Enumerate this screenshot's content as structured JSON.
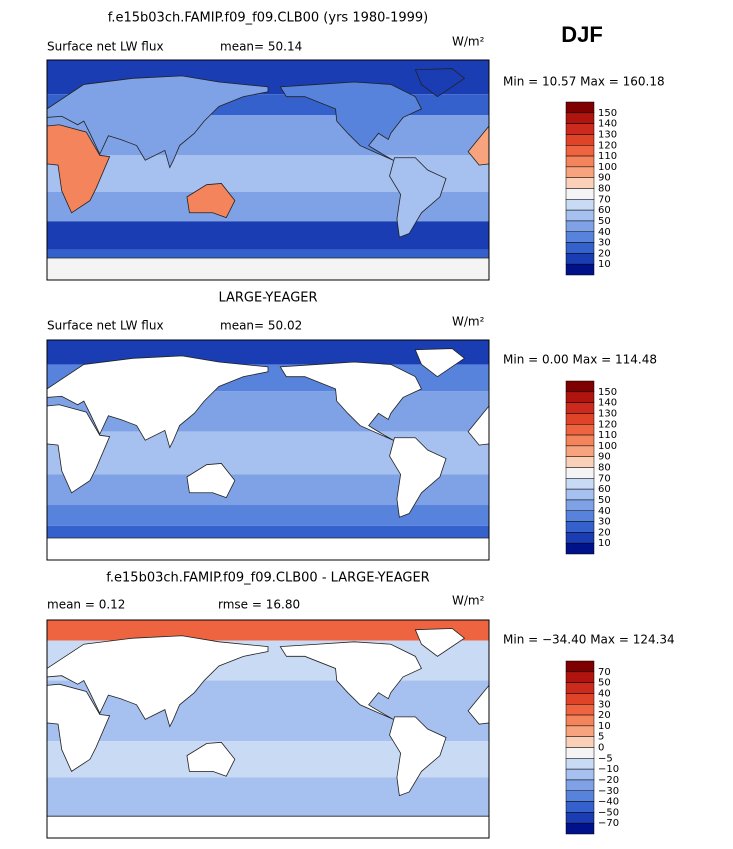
{
  "header": {
    "title": "f.e15b03ch.FAMIP.f09_f09.CLB00 (yrs 1980-1999)",
    "season": "DJF"
  },
  "panels": [
    {
      "subtitle": "Surface net LW flux",
      "stat1": "mean=  50.14",
      "units": "W/m²",
      "range": "Min =   10.57 Max = 160.18",
      "colorbar": {
        "labels": [
          "150",
          "140",
          "130",
          "120",
          "110",
          "100",
          "90",
          "80",
          "70",
          "60",
          "50",
          "40",
          "30",
          "20",
          "10"
        ],
        "colors": [
          "#7f0000",
          "#b0140f",
          "#cc2a1c",
          "#e04428",
          "#ee6440",
          "#f4845c",
          "#f7a47e",
          "#fbd0b8",
          "#f4f4f4",
          "#c9daf5",
          "#a6c0ef",
          "#7fa2e6",
          "#5783dc",
          "#3561cc",
          "#1a3db3",
          "#00128a"
        ]
      }
    },
    {
      "title": "LARGE-YEAGER",
      "subtitle": "Surface net LW flux",
      "stat1": "mean=  50.02",
      "units": "W/m²",
      "range": "Min =    0.00 Max = 114.48",
      "colorbar": {
        "labels": [
          "150",
          "140",
          "130",
          "120",
          "110",
          "100",
          "90",
          "80",
          "70",
          "60",
          "50",
          "40",
          "30",
          "20",
          "10"
        ],
        "colors": [
          "#7f0000",
          "#b0140f",
          "#cc2a1c",
          "#e04428",
          "#ee6440",
          "#f4845c",
          "#f7a47e",
          "#fbd0b8",
          "#f4f4f4",
          "#c9daf5",
          "#a6c0ef",
          "#7fa2e6",
          "#5783dc",
          "#3561cc",
          "#1a3db3",
          "#00128a"
        ]
      }
    },
    {
      "title": "f.e15b03ch.FAMIP.f09_f09.CLB00 - LARGE-YEAGER",
      "stat1": "mean =   0.12",
      "stat2": "rmse =  16.80",
      "units": "W/m²",
      "range": "Min = −34.40 Max = 124.34",
      "colorbar": {
        "labels": [
          "70",
          "50",
          "40",
          "30",
          "20",
          "10",
          "5",
          "0",
          "−5",
          "−10",
          "−20",
          "−30",
          "−40",
          "−50",
          "−70"
        ],
        "colors": [
          "#7f0000",
          "#b0140f",
          "#cc2a1c",
          "#e04428",
          "#ee6440",
          "#f4845c",
          "#f7a47e",
          "#fbd0b8",
          "#f4f4f4",
          "#c9daf5",
          "#a6c0ef",
          "#7fa2e6",
          "#5783dc",
          "#3561cc",
          "#1a3db3",
          "#00128a"
        ]
      }
    }
  ]
}
